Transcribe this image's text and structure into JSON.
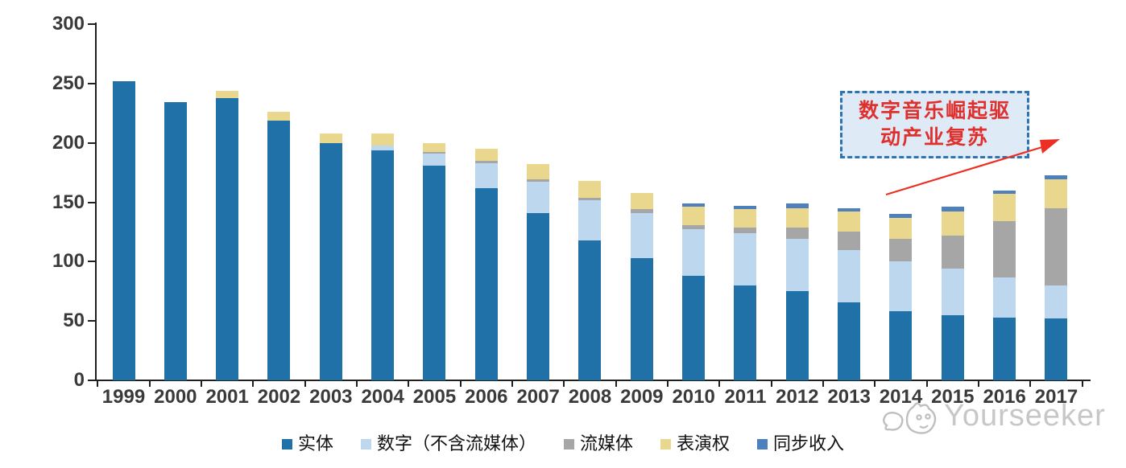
{
  "watermark": {
    "brand": "Yourseeker"
  },
  "annotation": {
    "line1": "数字音乐崛起驱",
    "line2": "动产业复苏",
    "arrow_color": "#ed2e24",
    "border_color": "#2e74b5",
    "fill_color": "#deebf7",
    "text_color": "#e0302e"
  },
  "chart_data": {
    "type": "bar",
    "stacked": true,
    "title": "",
    "xlabel": "",
    "ylabel": "",
    "grid": false,
    "legend_position": "bottom",
    "ylim": [
      0,
      300
    ],
    "yticks": [
      0,
      50,
      100,
      150,
      200,
      250,
      300
    ],
    "categories": [
      "1999",
      "2000",
      "2001",
      "2002",
      "2003",
      "2004",
      "2005",
      "2006",
      "2007",
      "2008",
      "2009",
      "2010",
      "2011",
      "2012",
      "2013",
      "2014",
      "2015",
      "2016",
      "2017"
    ],
    "series": [
      {
        "name": "实体",
        "color": "#2171a9",
        "values": [
          252,
          234,
          238,
          219,
          200,
          194,
          181,
          162,
          141,
          118,
          103,
          88,
          80,
          75,
          66,
          58,
          55,
          53,
          52
        ]
      },
      {
        "name": "数字（不含流媒体）",
        "color": "#bdd7ee",
        "values": [
          0,
          0,
          0,
          0,
          0,
          4,
          10,
          21,
          26,
          34,
          38,
          39,
          44,
          44,
          44,
          42,
          39,
          34,
          28
        ]
      },
      {
        "name": "流媒体",
        "color": "#a6a6a6",
        "values": [
          0,
          0,
          0,
          0,
          0,
          0,
          1,
          2,
          2,
          2,
          3,
          4,
          5,
          10,
          15,
          19,
          28,
          47,
          65
        ]
      },
      {
        "name": "表演权",
        "color": "#ead78e",
        "values": [
          0,
          0,
          6,
          7,
          8,
          10,
          8,
          10,
          13,
          14,
          14,
          15,
          15,
          16,
          17,
          18,
          20,
          23,
          24
        ]
      },
      {
        "name": "同步收入",
        "color": "#4e80bd",
        "values": [
          0,
          0,
          0,
          0,
          0,
          0,
          0,
          0,
          0,
          0,
          0,
          3,
          3,
          4,
          3,
          3,
          4,
          3,
          4
        ]
      }
    ]
  }
}
